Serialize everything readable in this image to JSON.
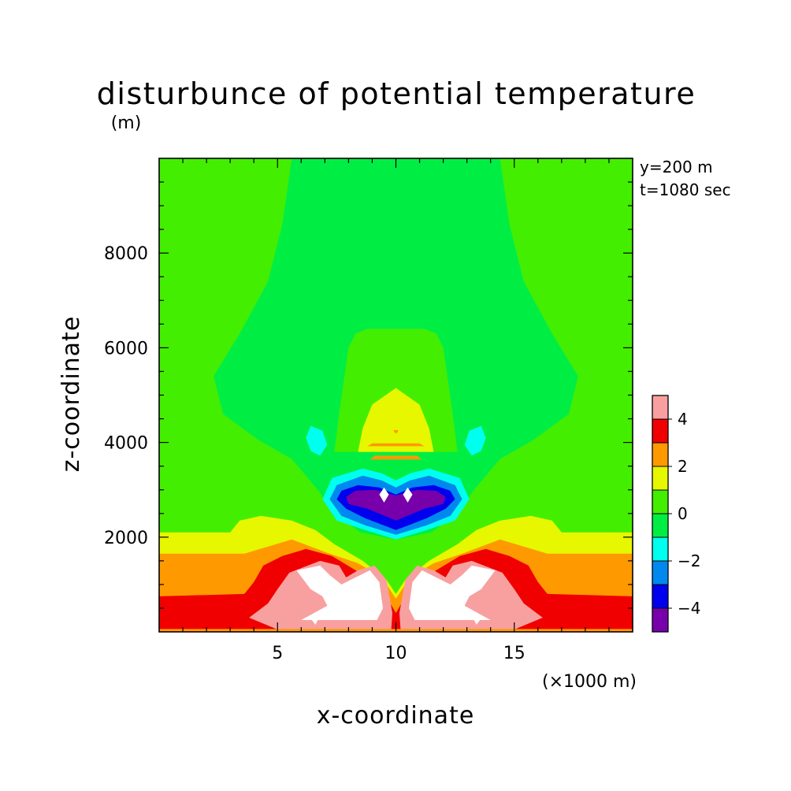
{
  "figure": {
    "title": "disturbunce of potential temperature",
    "annotations": [
      "y=200 m",
      "t=1080 sec"
    ]
  },
  "chart_data": {
    "type": "heatmap",
    "title": "disturbunce of potential temperature",
    "xlabel": "x-coordinate",
    "ylabel": "z-coordinate",
    "x_unit": "(×1000 m)",
    "y_unit": "(m)",
    "xlim": [
      0,
      20
    ],
    "ylim": [
      0,
      10000
    ],
    "x_ticks": [
      {
        "value": 5,
        "label": "5"
      },
      {
        "value": 10,
        "label": "10"
      },
      {
        "value": 15,
        "label": "15"
      }
    ],
    "y_ticks": [
      {
        "value": 2000,
        "label": "2000"
      },
      {
        "value": 4000,
        "label": "4000"
      },
      {
        "value": 6000,
        "label": "6000"
      },
      {
        "value": 8000,
        "label": "8000"
      }
    ],
    "colorbar": {
      "levels": [
        {
          "range": [
            4,
            5
          ],
          "color": "#f8a0a0"
        },
        {
          "range": [
            3,
            4
          ],
          "color": "#f00000"
        },
        {
          "range": [
            2,
            3
          ],
          "color": "#ff9900"
        },
        {
          "range": [
            1,
            2
          ],
          "color": "#e6f700"
        },
        {
          "range": [
            0,
            1
          ],
          "color": "#44ee00"
        },
        {
          "range": [
            -1,
            0
          ],
          "color": "#00ee44"
        },
        {
          "range": [
            -2,
            -1
          ],
          "color": "#00ffee"
        },
        {
          "range": [
            -3,
            -2
          ],
          "color": "#0088ee"
        },
        {
          "range": [
            -4,
            -3
          ],
          "color": "#0000ee"
        },
        {
          "range": [
            -5,
            -4
          ],
          "color": "#7700aa"
        }
      ],
      "over_color": "#ffffff",
      "under_color": "#ffffff",
      "labels": [
        {
          "value": 4,
          "label": "4"
        },
        {
          "value": 2,
          "label": "2"
        },
        {
          "value": 0,
          "label": "0"
        },
        {
          "value": -2,
          "label": "−2"
        },
        {
          "value": -4,
          "label": "−4"
        }
      ]
    },
    "field_description": "Symmetric about x=10: cold core (about -5) near z=2800 m, warm lobes (above 4) near z=1000 m, warm layer below 2000 m, weak positive anomaly plume aloft."
  }
}
